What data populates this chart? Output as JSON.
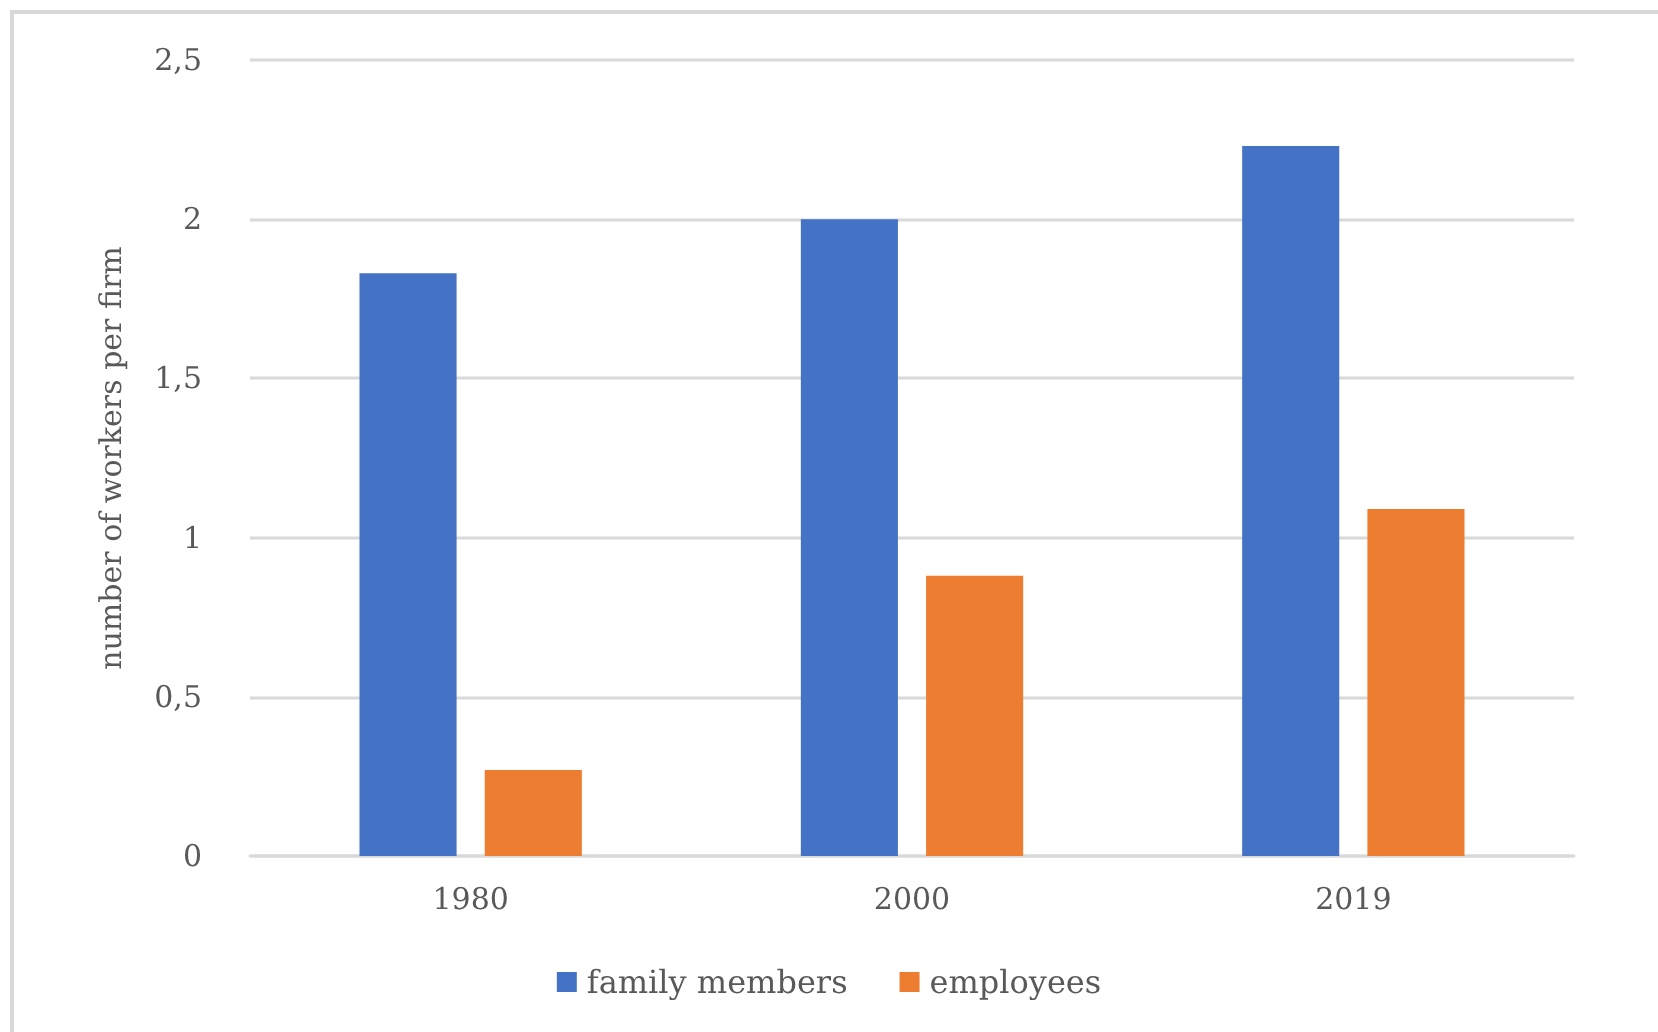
{
  "chart_data": {
    "type": "bar",
    "ylabel": "number of workers per firm",
    "categories": [
      "1980",
      "2000",
      "2019"
    ],
    "series": [
      {
        "name": "family members",
        "color": "#4472c4",
        "values": [
          1.83,
          2.0,
          2.23
        ]
      },
      {
        "name": "employees",
        "color": "#ed7d31",
        "values": [
          0.27,
          0.88,
          1.09
        ]
      }
    ],
    "ylim": [
      0,
      2.5
    ],
    "yticks": [
      0,
      {
        "value": 0.5,
        "label": "0,5"
      },
      1,
      {
        "value": 1.5,
        "label": "1,5"
      },
      2,
      {
        "value": 2.5,
        "label": "2,5"
      }
    ],
    "grid": "y",
    "legend": "bottom"
  }
}
